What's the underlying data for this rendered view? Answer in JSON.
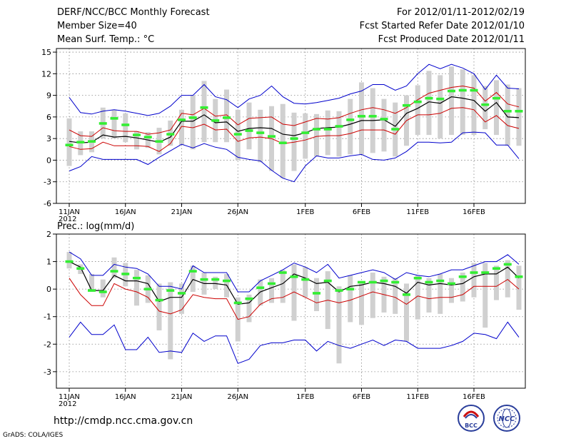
{
  "header": {
    "left_line1": "DERF/NCC/BCC Monthly Forecast",
    "left_line2": "Member Size=40",
    "left_line3": "Mean Surf. Temp.: °C",
    "right_line1": "For 2012/01/11-2012/02/19",
    "right_line2": "Fcst Started Refer Date 2012/01/10",
    "right_line3": "Fcst Produced Date 2012/01/11"
  },
  "footer": {
    "url": "http://cmdp.ncc.cma.gov.cn",
    "grads": "GrADS: COLA/IGES",
    "logo_bcc": "BCC",
    "logo_ncc": "NCC"
  },
  "colors": {
    "envelope": "#0000cc",
    "spread": "#cc0000",
    "mean": "#000000",
    "ensemble_box": "#d0d0d0",
    "median": "#33ee33"
  },
  "chart_data": [
    {
      "type": "line",
      "panel_label": "",
      "ylabel": "Mean Surf. Temp.: °C",
      "ylim": [
        -6,
        15.5
      ],
      "yticks": [
        -6,
        -3,
        0,
        3,
        6,
        9,
        12,
        15
      ],
      "xticks": [
        {
          "day": 0,
          "label": "11JAN"
        },
        {
          "day": 5,
          "label": "16JAN"
        },
        {
          "day": 10,
          "label": "21JAN"
        },
        {
          "day": 15,
          "label": "26JAN"
        },
        {
          "day": 21,
          "label": "1FEB"
        },
        {
          "day": 26,
          "label": "6FEB"
        },
        {
          "day": 31,
          "label": "11FEB"
        },
        {
          "day": 36,
          "label": "16FEB"
        }
      ],
      "year_label": "2012",
      "series": [
        {
          "name": "max",
          "values": [
            8.7,
            6.6,
            6.4,
            6.8,
            7.0,
            6.8,
            6.5,
            6.2,
            6.5,
            7.5,
            9.0,
            9.0,
            10.5,
            8.8,
            8.4,
            7.3,
            8.5,
            9.0,
            10.3,
            8.8,
            7.9,
            7.8,
            8.0,
            8.3,
            8.6,
            9.2,
            9.6,
            10.5,
            10.5,
            9.7,
            10.3,
            12.0,
            13.3,
            12.7,
            13.3,
            12.8,
            12.0,
            9.8,
            11.8,
            10.0,
            9.9
          ]
        },
        {
          "name": "upper",
          "values": [
            4.2,
            3.4,
            3.3,
            4.5,
            4.1,
            4.0,
            4.0,
            3.6,
            3.8,
            4.2,
            6.5,
            6.3,
            7.2,
            6.1,
            6.3,
            4.9,
            5.8,
            5.9,
            6.0,
            5.0,
            4.8,
            5.3,
            5.8,
            5.7,
            5.9,
            6.5,
            7.0,
            7.3,
            7.0,
            6.5,
            7.3,
            8.4,
            9.3,
            9.7,
            10.1,
            10.3,
            10.0,
            8.2,
            9.4,
            7.8,
            7.4
          ]
        },
        {
          "name": "mean",
          "values": [
            2.6,
            2.4,
            2.5,
            3.5,
            3.2,
            3.3,
            3.1,
            2.8,
            2.5,
            3.2,
            5.4,
            5.4,
            6.3,
            5.2,
            5.3,
            4.0,
            4.4,
            4.5,
            4.4,
            3.6,
            3.4,
            3.8,
            4.4,
            4.5,
            4.6,
            5.0,
            5.5,
            5.5,
            5.6,
            4.7,
            6.5,
            7.2,
            8.1,
            7.9,
            8.8,
            8.6,
            8.3,
            6.8,
            8.0,
            6.0,
            5.9
          ]
        },
        {
          "name": "lower",
          "values": [
            1.9,
            1.5,
            1.6,
            2.5,
            2.0,
            2.0,
            2.0,
            1.9,
            1.2,
            2.3,
            4.7,
            4.5,
            5.0,
            4.2,
            4.3,
            2.6,
            3.1,
            3.2,
            3.0,
            2.3,
            2.5,
            2.8,
            3.3,
            3.4,
            3.4,
            3.7,
            4.2,
            4.2,
            4.2,
            3.6,
            5.5,
            6.3,
            6.3,
            6.5,
            7.2,
            7.3,
            7.0,
            5.3,
            6.2,
            4.8,
            4.4
          ]
        },
        {
          "name": "min",
          "values": [
            -1.5,
            -0.9,
            0.5,
            0.1,
            0.1,
            0.1,
            0.1,
            -0.6,
            0.4,
            1.3,
            2.2,
            1.7,
            2.3,
            1.8,
            1.5,
            0.4,
            0.1,
            -0.1,
            -1.4,
            -2.5,
            -3.0,
            -0.8,
            0.6,
            0.3,
            0.3,
            0.6,
            0.8,
            0.1,
            0.0,
            0.3,
            1.2,
            2.5,
            2.5,
            2.4,
            2.5,
            3.8,
            3.9,
            3.8,
            2.1,
            2.1,
            0.2
          ]
        }
      ],
      "boxes": [
        [
          -0.8,
          5.8
        ],
        [
          0.7,
          4.0
        ],
        [
          1.1,
          4.0
        ],
        [
          3.0,
          7.3
        ],
        [
          3.0,
          7.0
        ],
        [
          2.5,
          6.5
        ],
        [
          1.5,
          4.0
        ],
        [
          1.7,
          3.9
        ],
        [
          0.8,
          4.5
        ],
        [
          2.0,
          5.5
        ],
        [
          2.1,
          7.0
        ],
        [
          1.5,
          9.0
        ],
        [
          2.5,
          11.0
        ],
        [
          2.5,
          8.5
        ],
        [
          2.5,
          9.8
        ],
        [
          0.0,
          7.0
        ],
        [
          1.5,
          8.0
        ],
        [
          -0.3,
          7.0
        ],
        [
          -1.5,
          7.5
        ],
        [
          -2.5,
          7.8
        ],
        [
          -1.5,
          6.6
        ],
        [
          0.2,
          6.5
        ],
        [
          0.5,
          6.4
        ],
        [
          0.7,
          6.9
        ],
        [
          0.5,
          6.8
        ],
        [
          0.8,
          8.5
        ],
        [
          0.8,
          10.8
        ],
        [
          1.0,
          10.0
        ],
        [
          1.2,
          8.5
        ],
        [
          0.5,
          8.0
        ],
        [
          2.0,
          9.0
        ],
        [
          3.5,
          10.4
        ],
        [
          3.5,
          12.4
        ],
        [
          3.0,
          11.8
        ],
        [
          3.5,
          13.0
        ],
        [
          3.5,
          12.6
        ],
        [
          3.5,
          11.8
        ],
        [
          4.3,
          10.3
        ],
        [
          3.5,
          11.1
        ],
        [
          2.0,
          10.5
        ],
        [
          2.0,
          10.0
        ]
      ],
      "medians": [
        2.1,
        2.5,
        2.6,
        5.1,
        5.8,
        4.9,
        3.5,
        3.2,
        2.6,
        3.6,
        5.6,
        5.9,
        7.3,
        5.5,
        5.9,
        3.6,
        4.1,
        3.8,
        3.3,
        2.4,
        3.0,
        3.8,
        4.3,
        4.3,
        4.7,
        5.6,
        6.1,
        6.1,
        5.7,
        4.3,
        7.6,
        8.1,
        8.6,
        8.5,
        9.6,
        9.7,
        9.7,
        7.7,
        8.6,
        6.8,
        6.8
      ]
    },
    {
      "type": "line",
      "panel_label": "Prec.: log(mm/d)",
      "ylim": [
        -3.6,
        2
      ],
      "yticks": [
        -3,
        -2,
        -1,
        0,
        1,
        2
      ],
      "xticks": [
        {
          "day": 0,
          "label": "11JAN"
        },
        {
          "day": 5,
          "label": "16JAN"
        },
        {
          "day": 10,
          "label": "21JAN"
        },
        {
          "day": 15,
          "label": "26JAN"
        },
        {
          "day": 21,
          "label": "1FEB"
        },
        {
          "day": 26,
          "label": "6FEB"
        },
        {
          "day": 31,
          "label": "11FEB"
        },
        {
          "day": 36,
          "label": "16FEB"
        }
      ],
      "year_label": "2012",
      "series": [
        {
          "name": "max",
          "values": [
            1.35,
            1.1,
            0.5,
            0.5,
            0.9,
            0.8,
            0.75,
            0.55,
            0.1,
            0.1,
            0.0,
            0.85,
            0.6,
            0.6,
            0.6,
            -0.1,
            -0.1,
            0.3,
            0.5,
            0.7,
            0.95,
            0.8,
            0.6,
            0.9,
            0.4,
            0.5,
            0.6,
            0.7,
            0.6,
            0.35,
            0.6,
            0.5,
            0.45,
            0.55,
            0.7,
            0.7,
            0.85,
            1.0,
            1.0,
            1.25,
            0.9
          ]
        },
        {
          "name": "mean",
          "values": [
            1.0,
            0.8,
            -0.05,
            -0.05,
            0.5,
            0.3,
            0.3,
            0.2,
            -0.45,
            -0.3,
            -0.3,
            0.35,
            0.2,
            0.2,
            0.15,
            -0.55,
            -0.5,
            -0.1,
            0.05,
            0.2,
            0.55,
            0.4,
            0.2,
            0.25,
            -0.1,
            0.1,
            0.15,
            0.25,
            0.2,
            0.1,
            -0.15,
            0.25,
            0.15,
            0.2,
            0.15,
            0.2,
            0.45,
            0.55,
            0.55,
            0.8,
            0.4
          ]
        },
        {
          "name": "lower",
          "values": [
            0.4,
            -0.2,
            -0.6,
            -0.6,
            0.2,
            0.0,
            -0.1,
            -0.3,
            -0.8,
            -0.9,
            -0.75,
            -0.2,
            -0.3,
            -0.35,
            -0.35,
            -1.1,
            -1.0,
            -0.55,
            -0.35,
            -0.3,
            -0.1,
            -0.3,
            -0.5,
            -0.4,
            -0.5,
            -0.4,
            -0.25,
            -0.1,
            -0.2,
            -0.3,
            -0.55,
            -0.25,
            -0.35,
            -0.3,
            -0.3,
            -0.2,
            0.1,
            0.1,
            0.1,
            0.35,
            0.0
          ]
        },
        {
          "name": "min",
          "values": [
            -1.75,
            -1.2,
            -1.65,
            -1.65,
            -1.3,
            -2.2,
            -2.2,
            -1.75,
            -2.3,
            -2.25,
            -2.3,
            -1.6,
            -1.9,
            -1.7,
            -1.7,
            -2.7,
            -2.55,
            -2.05,
            -1.95,
            -1.95,
            -1.85,
            -1.85,
            -2.25,
            -1.9,
            -2.05,
            -2.15,
            -2.0,
            -1.85,
            -2.05,
            -1.85,
            -1.9,
            -2.15,
            -2.15,
            -2.15,
            -2.05,
            -1.9,
            -1.6,
            -1.65,
            -1.8,
            -1.2,
            -1.75
          ]
        }
      ],
      "boxes": [
        [
          0.75,
          1.35
        ],
        [
          0.55,
          0.9
        ],
        [
          -0.1,
          0.55
        ],
        [
          -0.3,
          0.35
        ],
        [
          0.4,
          1.15
        ],
        [
          0.1,
          0.95
        ],
        [
          -0.6,
          0.7
        ],
        [
          -0.5,
          0.5
        ],
        [
          -1.5,
          0.2
        ],
        [
          -2.55,
          0.25
        ],
        [
          -0.9,
          0.2
        ],
        [
          -0.1,
          0.85
        ],
        [
          -0.2,
          0.6
        ],
        [
          0.0,
          0.45
        ],
        [
          -0.3,
          0.55
        ],
        [
          -1.9,
          -0.3
        ],
        [
          -1.2,
          -0.2
        ],
        [
          -0.6,
          0.35
        ],
        [
          -0.5,
          0.4
        ],
        [
          -0.5,
          0.7
        ],
        [
          -1.15,
          0.9
        ],
        [
          -0.3,
          0.8
        ],
        [
          -0.8,
          0.4
        ],
        [
          -1.45,
          0.65
        ],
        [
          -2.7,
          0.1
        ],
        [
          -1.2,
          0.5
        ],
        [
          -1.3,
          0.2
        ],
        [
          -1.05,
          0.6
        ],
        [
          -0.85,
          0.45
        ],
        [
          -0.9,
          0.4
        ],
        [
          -1.9,
          0.2
        ],
        [
          -1.1,
          0.5
        ],
        [
          -0.85,
          0.4
        ],
        [
          -0.9,
          0.55
        ],
        [
          -0.5,
          0.4
        ],
        [
          -0.45,
          0.6
        ],
        [
          -0.3,
          0.95
        ],
        [
          -1.4,
          0.95
        ],
        [
          -0.4,
          0.85
        ],
        [
          -0.3,
          1.05
        ],
        [
          -0.75,
          0.85
        ]
      ],
      "medians": [
        1.0,
        0.75,
        -0.05,
        -0.1,
        0.65,
        0.55,
        0.4,
        0.0,
        -0.4,
        -0.05,
        -0.15,
        0.65,
        0.35,
        0.35,
        0.3,
        -0.5,
        -0.35,
        0.05,
        0.2,
        0.6,
        0.45,
        0.35,
        -0.15,
        0.3,
        -0.05,
        0.0,
        0.25,
        0.25,
        0.3,
        0.25,
        -0.2,
        0.4,
        0.25,
        0.3,
        0.2,
        0.45,
        0.6,
        0.6,
        0.75,
        0.9,
        0.45
      ]
    }
  ]
}
